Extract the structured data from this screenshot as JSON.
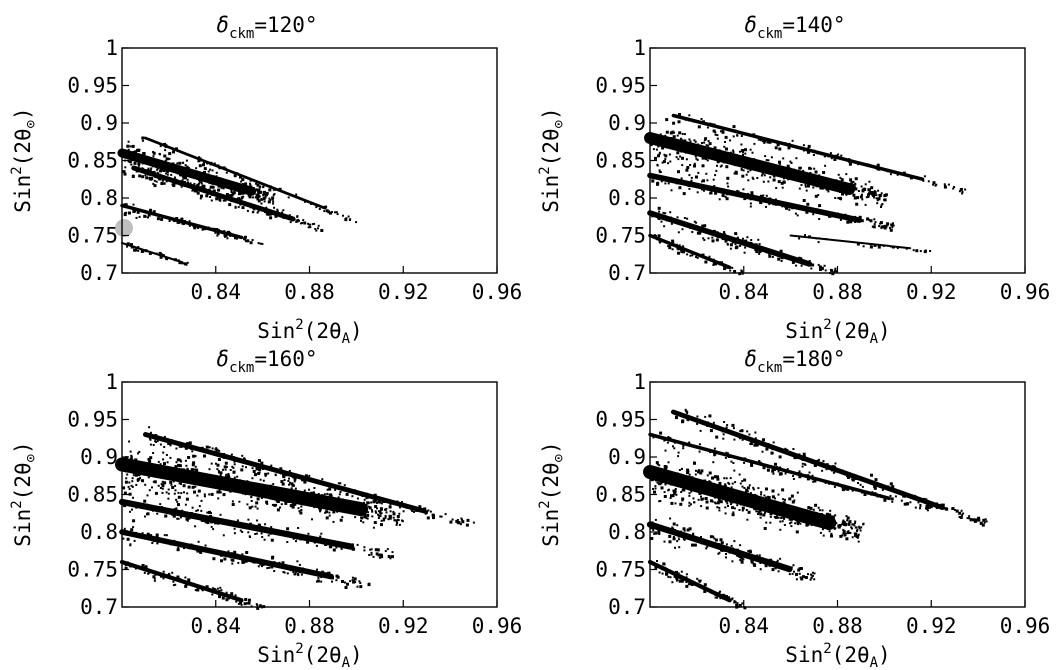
{
  "chart_data": [
    {
      "type": "scatter",
      "title_prefix": "δ",
      "title_sub": "ckm",
      "title_suffix": "=120°",
      "xlabel_base": "Sin",
      "xlabel_sup": "2",
      "xlabel_paren": "(2θ",
      "xlabel_sub": "A",
      "xlabel_close": ")",
      "ylabel_base": "Sin",
      "ylabel_sup": "2",
      "ylabel_paren": "(2θ",
      "ylabel_sub": "⊙",
      "ylabel_close": ")",
      "xlim": [
        0.8,
        0.96
      ],
      "ylim": [
        0.7,
        1.0
      ],
      "xticks": [
        "0.84",
        "0.88",
        "0.92",
        "0.96"
      ],
      "yticks": [
        "1",
        "0.95",
        "0.9",
        "0.85",
        "0.8",
        "0.75",
        "0.7"
      ],
      "marker_point": {
        "x": 0.8,
        "y": 0.76,
        "color": "#bfbfbf"
      },
      "streaks": [
        {
          "x0": 0.8,
          "y0": 0.86,
          "x1": 0.865,
          "y1": 0.8,
          "w": 26,
          "n": 300
        },
        {
          "x0": 0.805,
          "y0": 0.84,
          "x1": 0.885,
          "y1": 0.76,
          "w": 14,
          "n": 160
        },
        {
          "x0": 0.81,
          "y0": 0.88,
          "x1": 0.9,
          "y1": 0.77,
          "w": 8,
          "n": 60
        },
        {
          "x0": 0.8,
          "y0": 0.79,
          "x1": 0.86,
          "y1": 0.74,
          "w": 10,
          "n": 90
        },
        {
          "x0": 0.8,
          "y0": 0.74,
          "x1": 0.83,
          "y1": 0.71,
          "w": 6,
          "n": 30
        }
      ],
      "density": "sparse"
    },
    {
      "type": "scatter",
      "title_prefix": "δ",
      "title_sub": "ckm",
      "title_suffix": "=140°",
      "xlabel_base": "Sin",
      "xlabel_sup": "2",
      "xlabel_paren": "(2θ",
      "xlabel_sub": "A",
      "xlabel_close": ")",
      "ylabel_base": "Sin",
      "ylabel_sup": "2",
      "ylabel_paren": "(2θ",
      "ylabel_sub": "⊙",
      "ylabel_close": ")",
      "xlim": [
        0.8,
        0.96
      ],
      "ylim": [
        0.7,
        1.0
      ],
      "xticks": [
        "0.84",
        "0.88",
        "0.92",
        "0.96"
      ],
      "yticks": [
        "1",
        "0.95",
        "0.9",
        "0.85",
        "0.8",
        "0.75",
        "0.7"
      ],
      "streaks": [
        {
          "x0": 0.8,
          "y0": 0.88,
          "x1": 0.9,
          "y1": 0.8,
          "w": 34,
          "n": 420
        },
        {
          "x0": 0.81,
          "y0": 0.91,
          "x1": 0.935,
          "y1": 0.81,
          "w": 10,
          "n": 120
        },
        {
          "x0": 0.8,
          "y0": 0.83,
          "x1": 0.905,
          "y1": 0.76,
          "w": 16,
          "n": 160
        },
        {
          "x0": 0.8,
          "y0": 0.78,
          "x1": 0.88,
          "y1": 0.7,
          "w": 16,
          "n": 140
        },
        {
          "x0": 0.8,
          "y0": 0.75,
          "x1": 0.84,
          "y1": 0.7,
          "w": 10,
          "n": 60
        },
        {
          "x0": 0.86,
          "y0": 0.75,
          "x1": 0.92,
          "y1": 0.73,
          "w": 4,
          "n": 25
        }
      ],
      "density": "medium"
    },
    {
      "type": "scatter",
      "title_prefix": "δ",
      "title_sub": "ckm",
      "title_suffix": "=160°",
      "xlabel_base": "Sin",
      "xlabel_sup": "2",
      "xlabel_paren": "(2θ",
      "xlabel_sub": "A",
      "xlabel_close": ")",
      "ylabel_base": "Sin",
      "ylabel_sup": "2",
      "ylabel_paren": "(2θ",
      "ylabel_sub": "⊙",
      "ylabel_close": ")",
      "xlim": [
        0.8,
        0.96
      ],
      "ylim": [
        0.7,
        1.0
      ],
      "xticks": [
        "0.84",
        "0.88",
        "0.92",
        "0.96"
      ],
      "yticks": [
        "1",
        "0.95",
        "0.9",
        "0.85",
        "0.8",
        "0.75",
        "0.7"
      ],
      "streaks": [
        {
          "x0": 0.8,
          "y0": 0.89,
          "x1": 0.92,
          "y1": 0.82,
          "w": 40,
          "n": 560
        },
        {
          "x0": 0.81,
          "y0": 0.93,
          "x1": 0.95,
          "y1": 0.81,
          "w": 14,
          "n": 180
        },
        {
          "x0": 0.8,
          "y0": 0.84,
          "x1": 0.915,
          "y1": 0.77,
          "w": 18,
          "n": 200
        },
        {
          "x0": 0.8,
          "y0": 0.8,
          "x1": 0.905,
          "y1": 0.73,
          "w": 16,
          "n": 160
        },
        {
          "x0": 0.8,
          "y0": 0.76,
          "x1": 0.86,
          "y1": 0.7,
          "w": 12,
          "n": 100
        }
      ],
      "density": "dense"
    },
    {
      "type": "scatter",
      "title_prefix": "δ",
      "title_sub": "ckm",
      "title_suffix": "=180°",
      "xlabel_base": "Sin",
      "xlabel_sup": "2",
      "xlabel_paren": "(2θ",
      "xlabel_sub": "A",
      "xlabel_close": ")",
      "ylabel_base": "Sin",
      "ylabel_sup": "2",
      "ylabel_paren": "(2θ",
      "ylabel_sub": "⊙",
      "ylabel_close": ")",
      "xlim": [
        0.8,
        0.96
      ],
      "ylim": [
        0.7,
        1.0
      ],
      "xticks": [
        "0.84",
        "0.88",
        "0.92",
        "0.96"
      ],
      "yticks": [
        "1",
        "0.95",
        "0.9",
        "0.85",
        "0.8",
        "0.75",
        "0.7"
      ],
      "streaks": [
        {
          "x0": 0.8,
          "y0": 0.88,
          "x1": 0.89,
          "y1": 0.8,
          "w": 40,
          "n": 520
        },
        {
          "x0": 0.81,
          "y0": 0.96,
          "x1": 0.945,
          "y1": 0.81,
          "w": 14,
          "n": 200
        },
        {
          "x0": 0.8,
          "y0": 0.93,
          "x1": 0.92,
          "y1": 0.83,
          "w": 10,
          "n": 120
        },
        {
          "x0": 0.8,
          "y0": 0.81,
          "x1": 0.87,
          "y1": 0.74,
          "w": 18,
          "n": 180
        },
        {
          "x0": 0.8,
          "y0": 0.76,
          "x1": 0.84,
          "y1": 0.7,
          "w": 12,
          "n": 90
        }
      ],
      "density": "dense"
    }
  ]
}
